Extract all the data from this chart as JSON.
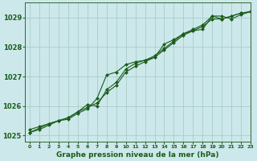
{
  "title": "Graphe pression niveau de la mer (hPa)",
  "background_color": "#cce8ea",
  "grid_color": "#aacccc",
  "line_color": "#1a5c1a",
  "marker_color": "#1a5c1a",
  "xlim": [
    -0.5,
    23
  ],
  "ylim": [
    1024.8,
    1029.5
  ],
  "yticks": [
    1025,
    1026,
    1027,
    1028,
    1029
  ],
  "xticks": [
    0,
    1,
    2,
    3,
    4,
    5,
    6,
    7,
    8,
    9,
    10,
    11,
    12,
    13,
    14,
    15,
    16,
    17,
    18,
    19,
    20,
    21,
    22,
    23
  ],
  "series": [
    [
      1025.2,
      1025.3,
      1025.4,
      1025.5,
      1025.55,
      1025.75,
      1025.9,
      1026.25,
      1027.05,
      1027.15,
      1027.4,
      1027.5,
      1027.55,
      1027.65,
      1028.1,
      1028.25,
      1028.45,
      1028.55,
      1028.6,
      1029.05,
      1029.05,
      1028.95,
      1029.1,
      1029.2
    ],
    [
      1025.1,
      1025.25,
      1025.4,
      1025.5,
      1025.6,
      1025.8,
      1026.05,
      1026.0,
      1026.55,
      1026.8,
      1027.25,
      1027.45,
      1027.55,
      1027.7,
      1027.95,
      1028.2,
      1028.45,
      1028.6,
      1028.75,
      1029.05,
      1028.95,
      1029.05,
      1029.15,
      1029.2
    ],
    [
      1025.1,
      1025.2,
      1025.35,
      1025.5,
      1025.6,
      1025.8,
      1025.95,
      1026.1,
      1026.45,
      1026.7,
      1027.15,
      1027.35,
      1027.5,
      1027.65,
      1027.9,
      1028.15,
      1028.4,
      1028.55,
      1028.7,
      1028.95,
      1028.95,
      1029.05,
      1029.15,
      1029.2
    ]
  ]
}
